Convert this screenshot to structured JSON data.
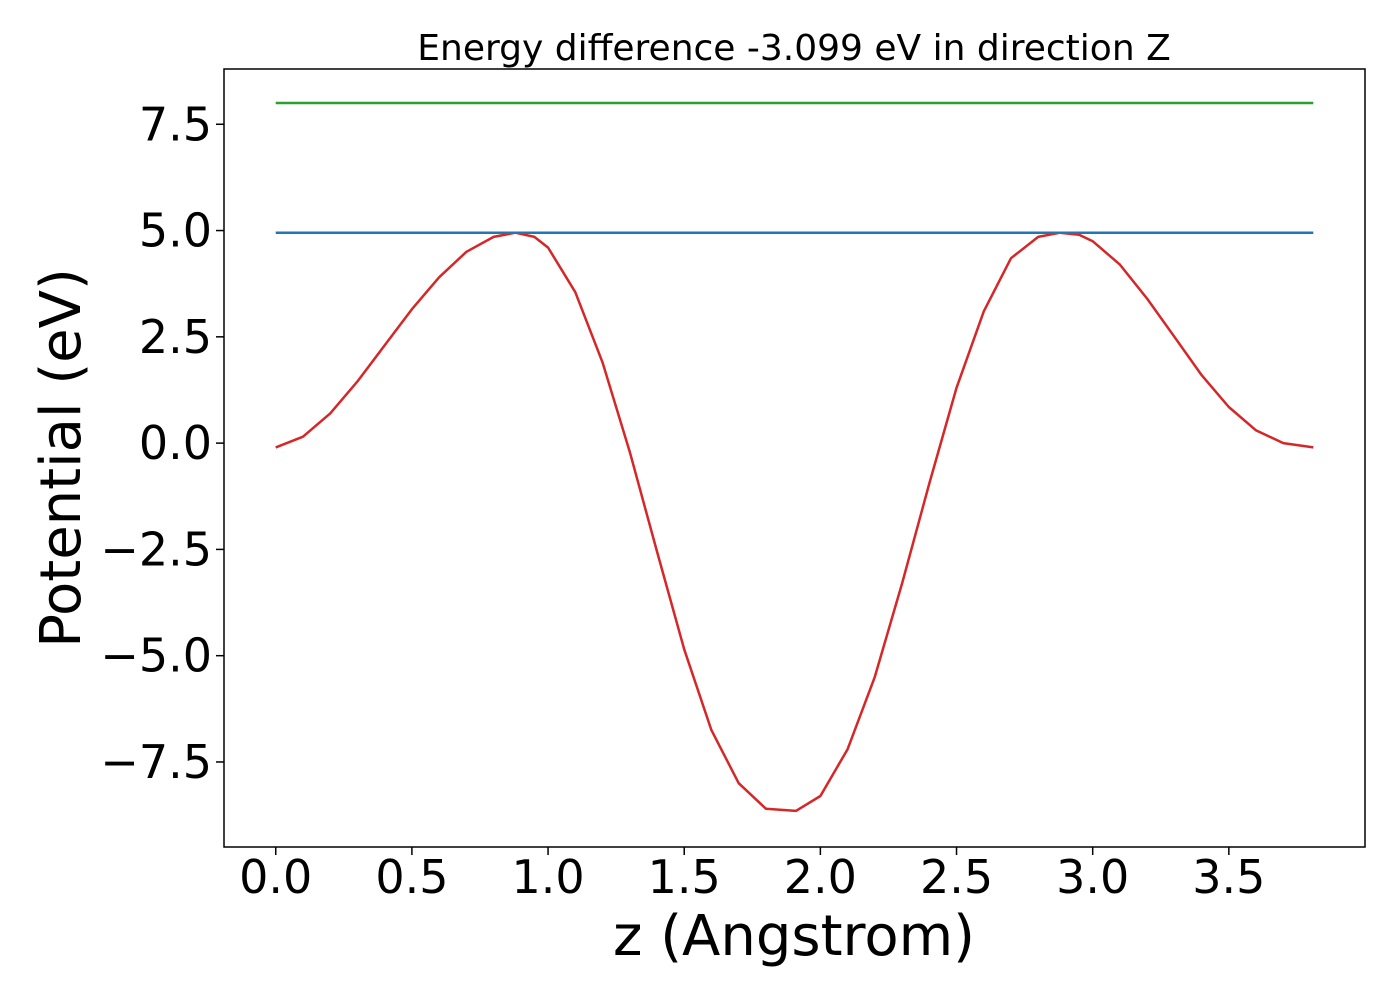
{
  "chart_data": {
    "type": "line",
    "title": "Energy difference -3.099 eV in direction Z",
    "xlabel": "z (Angstrom)",
    "ylabel": "Potential (eV)",
    "xlim": [
      -0.19,
      4.0
    ],
    "ylim": [
      -9.5,
      8.8
    ],
    "x_ticks": [
      0.0,
      0.5,
      1.0,
      1.5,
      2.0,
      2.5,
      3.0,
      3.5
    ],
    "x_tick_labels": [
      "0.0",
      "0.5",
      "1.0",
      "1.5",
      "2.0",
      "2.5",
      "3.0",
      "3.5"
    ],
    "y_ticks": [
      -7.5,
      -5.0,
      -2.5,
      0.0,
      2.5,
      5.0,
      7.5
    ],
    "y_tick_labels": [
      "−7.5",
      "−5.0",
      "−2.5",
      "0.0",
      "2.5",
      "5.0",
      "7.5"
    ],
    "grid": false,
    "legend": "none",
    "series": [
      {
        "color": "#d62728",
        "x": [
          0.0,
          0.1,
          0.2,
          0.3,
          0.4,
          0.5,
          0.6,
          0.7,
          0.8,
          0.88,
          0.95,
          1.0,
          1.1,
          1.2,
          1.3,
          1.4,
          1.5,
          1.6,
          1.7,
          1.8,
          1.91,
          2.0,
          2.1,
          2.2,
          2.3,
          2.4,
          2.5,
          2.6,
          2.7,
          2.8,
          2.88,
          2.95,
          3.0,
          3.1,
          3.2,
          3.3,
          3.4,
          3.5,
          3.6,
          3.7,
          3.81
        ],
        "y": [
          -0.1,
          0.15,
          0.7,
          1.45,
          2.3,
          3.15,
          3.9,
          4.5,
          4.85,
          4.95,
          4.85,
          4.6,
          3.55,
          1.9,
          -0.2,
          -2.55,
          -4.85,
          -6.75,
          -8.0,
          -8.6,
          -8.65,
          -8.3,
          -7.2,
          -5.5,
          -3.3,
          -0.95,
          1.3,
          3.1,
          4.35,
          4.85,
          4.95,
          4.9,
          4.75,
          4.2,
          3.4,
          2.5,
          1.6,
          0.85,
          0.3,
          0.0,
          -0.1
        ]
      },
      {
        "color": "#1f77b4",
        "x": [
          0.0,
          3.81
        ],
        "y": [
          4.95,
          4.95
        ]
      },
      {
        "color": "#2ca02c",
        "x": [
          0.0,
          3.81
        ],
        "y": [
          8.0,
          8.0
        ]
      }
    ]
  }
}
